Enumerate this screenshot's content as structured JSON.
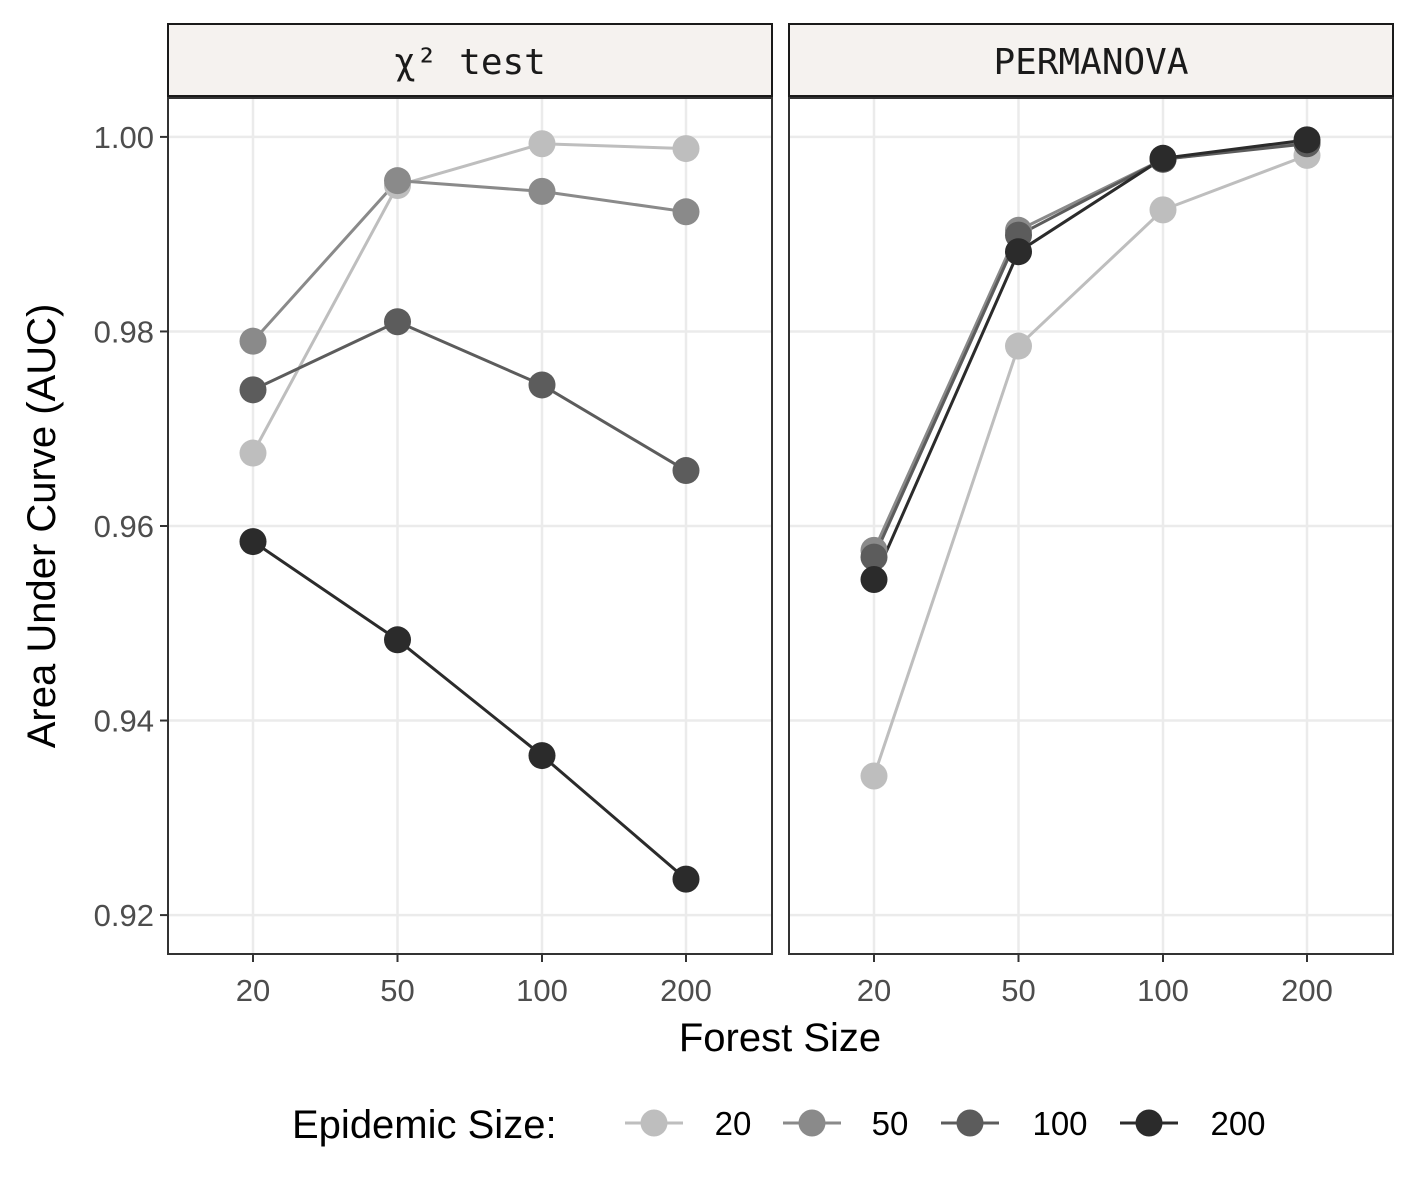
{
  "chart_data": {
    "type": "line",
    "x_title": "Forest Size",
    "y_title": "Area Under Curve (AUC)",
    "x_categories": [
      "20",
      "50",
      "100",
      "200"
    ],
    "y_range": [
      0.916,
      1.004
    ],
    "y_ticks": [
      0.92,
      0.94,
      0.96,
      0.98,
      1.0
    ],
    "y_tick_labels": [
      "0.92",
      "0.94",
      "0.96",
      "0.98",
      "1.00"
    ],
    "grid": true,
    "legend": {
      "title": "Epidemic Size:",
      "position": "bottom",
      "entries": [
        {
          "label": "20",
          "color": "#bebebe"
        },
        {
          "label": "50",
          "color": "#8a8a8a"
        },
        {
          "label": "100",
          "color": "#5c5c5c"
        },
        {
          "label": "200",
          "color": "#2b2b2b"
        }
      ]
    },
    "panels": [
      {
        "title": "χ² test",
        "series": [
          {
            "name": "20",
            "values": [
              0.9675,
              0.995,
              0.9993,
              0.9988
            ]
          },
          {
            "name": "50",
            "values": [
              0.979,
              0.9955,
              0.9944,
              0.9923
            ]
          },
          {
            "name": "100",
            "values": [
              0.974,
              0.981,
              0.9745,
              0.9657
            ]
          },
          {
            "name": "200",
            "values": [
              0.9584,
              0.9483,
              0.9364,
              0.9237
            ]
          }
        ]
      },
      {
        "title": "PERMANOVA",
        "series": [
          {
            "name": "20",
            "values": [
              0.9343,
              0.9785,
              0.9925,
              0.9981
            ]
          },
          {
            "name": "50",
            "values": [
              0.9575,
              0.9904,
              0.9977,
              0.9994
            ]
          },
          {
            "name": "100",
            "values": [
              0.9568,
              0.9899,
              0.9977,
              0.9993
            ]
          },
          {
            "name": "200",
            "values": [
              0.9545,
              0.9882,
              0.9978,
              0.9997
            ]
          }
        ]
      }
    ]
  }
}
